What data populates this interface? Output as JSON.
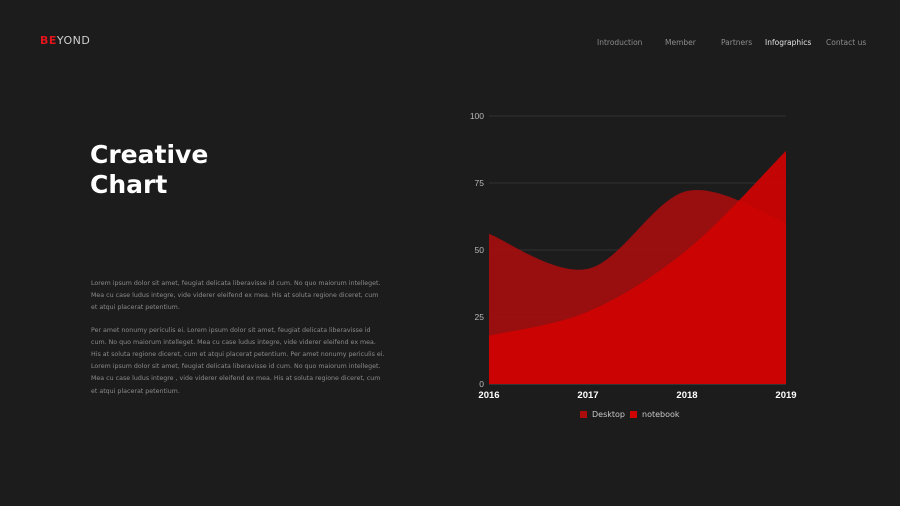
{
  "logo": {
    "brand": "BE",
    "rest": "YOND"
  },
  "nav": {
    "items": [
      {
        "label": "Introduction",
        "active": false
      },
      {
        "label": "Member",
        "active": false
      },
      {
        "label": "Partners",
        "active": false
      },
      {
        "label": "Infographics",
        "active": true
      },
      {
        "label": "Contact us",
        "active": false
      }
    ]
  },
  "hero": {
    "title_line1": "Creative",
    "title_line2": "Chart"
  },
  "body": {
    "paragraph1": "Lorem ipsum dolor sit amet, feugiat delicata liberavisse id cum. No quo maiorum intelleget. Mea cu case ludus integre, vide viderer eleifend ex mea. His at soluta regione diceret, cum et atqui placerat petentium.",
    "paragraph2": "Per amet nonumy periculis ei. Lorem ipsum dolor sit amet, feugiat delicata liberavisse id cum. No quo maiorum intelleget. Mea cu case ludus integre, vide viderer eleifend ex mea. His at soluta regione diceret, cum et atqui placerat petentium. Per amet nonumy periculis ei. Lorem ipsum dolor sit amet, feugiat delicata liberavisse id cum. No quo maiorum intelleget. Mea cu case ludus integre , vide viderer eleifend ex mea. His at soluta regione diceret, cum et atqui placerat petentium."
  },
  "colors": {
    "background": "#1c1c1d",
    "accent": "#e0141a",
    "desktop": "#ab0d0d",
    "notebook": "#d00202"
  },
  "chart_data": {
    "type": "area",
    "x": [
      "2016",
      "2017",
      "2018",
      "2019"
    ],
    "series": [
      {
        "name": "Desktop",
        "values": [
          56,
          43,
          72,
          60
        ],
        "color": "#ab0d0d"
      },
      {
        "name": "notebook",
        "values": [
          18,
          27,
          50,
          87
        ],
        "color": "#d00202"
      }
    ],
    "yticks": [
      0,
      25,
      50,
      75,
      100
    ],
    "ylim": [
      0,
      100
    ],
    "grid": true,
    "legend_position": "bottom"
  }
}
